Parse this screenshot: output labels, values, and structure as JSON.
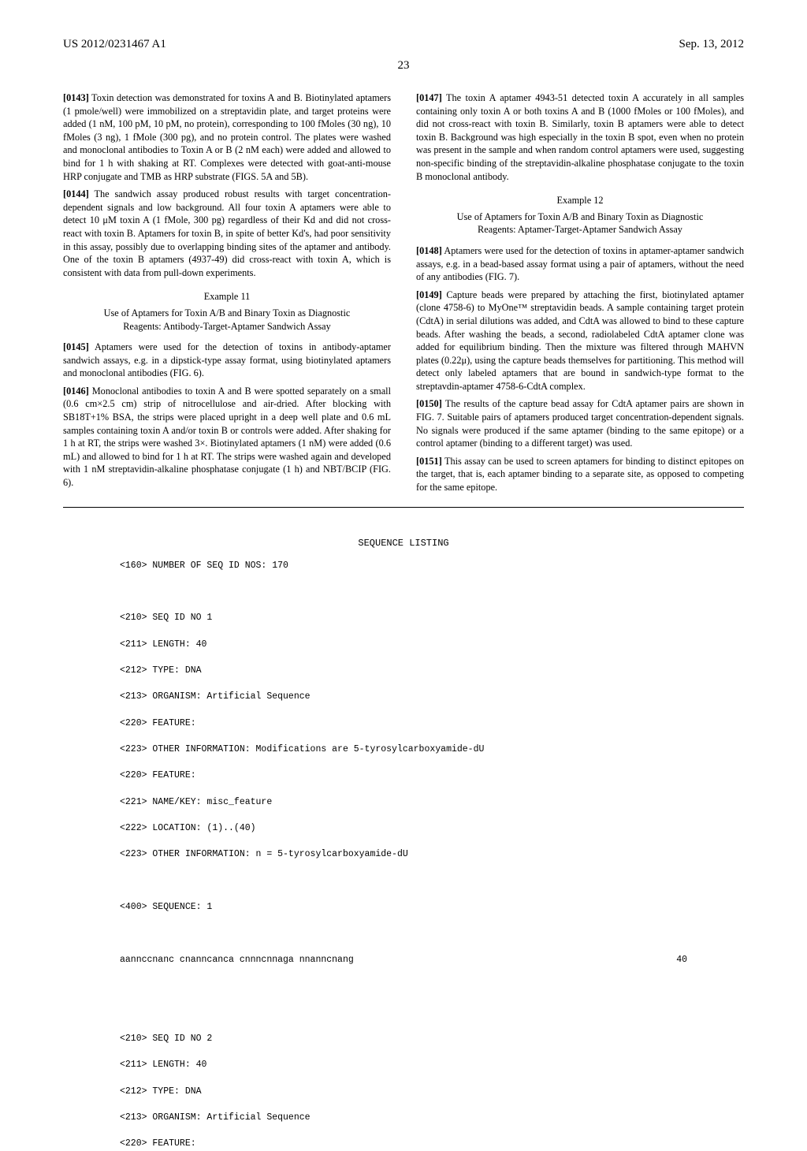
{
  "header": {
    "pub_number": "US 2012/0231467 A1",
    "date": "Sep. 13, 2012",
    "page_number": "23"
  },
  "left_col": {
    "p0143": {
      "num": "[0143]",
      "text": "  Toxin detection was demonstrated for toxins A and B. Biotinylated aptamers (1 pmole/well) were immobilized on a streptavidin plate, and target proteins were added (1 nM, 100 pM, 10 pM, no protein), corresponding to 100 fMoles (30 ng), 10 fMoles (3 ng), 1 fMole (300 pg), and no protein control. The plates were washed and monoclonal antibodies to Toxin A or B (2 nM each) were added and allowed to bind for 1 h with shaking at RT. Complexes were detected with goat-anti-mouse HRP conjugate and TMB as HRP substrate (FIGS. 5A and 5B)."
    },
    "p0144": {
      "num": "[0144]",
      "text": "  The sandwich assay produced robust results with target concentration-dependent signals and low background. All four toxin A aptamers were able to detect 10 μM toxin A (1 fMole, 300 pg) regardless of their Kd and did not cross-react with toxin B. Aptamers for toxin B, in spite of better Kd's, had poor sensitivity in this assay, possibly due to overlapping binding sites of the aptamer and antibody. One of the toxin B aptamers (4937-49) did cross-react with toxin A, which is consistent with data from pull-down experiments."
    },
    "ex11_num": "Example 11",
    "ex11_title": "Use of Aptamers for Toxin A/B and Binary Toxin as Diagnostic Reagents: Antibody-Target-Aptamer Sandwich Assay",
    "p0145": {
      "num": "[0145]",
      "text": "  Aptamers were used for the detection of toxins in antibody-aptamer sandwich assays, e.g. in a dipstick-type assay format, using biotinylated aptamers and monoclonal antibodies (FIG. 6)."
    },
    "p0146": {
      "num": "[0146]",
      "text": "  Monoclonal antibodies to toxin A and B were spotted separately on a small (0.6 cm×2.5 cm) strip of nitrocellulose and air-dried. After blocking with SB18T+1% BSA, the strips were placed upright in a deep well plate and 0.6 mL samples containing toxin A and/or toxin B or controls were added. After shaking for 1 h at RT, the strips were washed 3×. Biotinylated aptamers (1 nM) were added (0.6 mL) and allowed to bind for 1 h at RT. The strips were washed again and developed with 1 nM streptavidin-alkaline phosphatase conjugate (1 h) and NBT/BCIP (FIG. 6)."
    }
  },
  "right_col": {
    "p0147": {
      "num": "[0147]",
      "text": "  The toxin A aptamer 4943-51 detected toxin A accurately in all samples containing only toxin A or both toxins A and B (1000 fMoles or 100 fMoles), and did not cross-react with toxin B. Similarly, toxin B aptamers were able to detect toxin B. Background was high especially in the toxin B spot, even when no protein was present in the sample and when random control aptamers were used, suggesting non-specific binding of the streptavidin-alkaline phosphatase conjugate to the toxin B monoclonal antibody."
    },
    "ex12_num": "Example 12",
    "ex12_title": "Use of Aptamers for Toxin A/B and Binary Toxin as Diagnostic Reagents: Aptamer-Target-Aptamer Sandwich Assay",
    "p0148": {
      "num": "[0148]",
      "text": "  Aptamers were used for the detection of toxins in aptamer-aptamer sandwich assays, e.g. in a bead-based assay format using a pair of aptamers, without the need of any antibodies (FIG. 7)."
    },
    "p0149": {
      "num": "[0149]",
      "text": "  Capture beads were prepared by attaching the first, biotinylated aptamer (clone 4758-6) to MyOne™ streptavidin beads. A sample containing target protein (CdtA) in serial dilutions was added, and CdtA was allowed to bind to these capture beads. After washing the beads, a second, radiolabeled CdtA aptamer clone was added for equilibrium binding. Then the mixture was filtered through MAHVN plates (0.22μ), using the capture beads themselves for partitioning. This method will detect only labeled aptamers that are bound in sandwich-type format to the streptavdin-aptamer 4758-6-CdtA complex."
    },
    "p0150": {
      "num": "[0150]",
      "text": "  The results of the capture bead assay for CdtA aptamer pairs are shown in FIG. 7. Suitable pairs of aptamers produced target concentration-dependent signals. No signals were produced if the same aptamer (binding to the same epitope) or a control aptamer (binding to a different target) was used."
    },
    "p0151": {
      "num": "[0151]",
      "text": "  This assay can be used to screen aptamers for binding to distinct epitopes on the target, that is, each aptamer binding to a separate site, as opposed to competing for the same epitope."
    }
  },
  "seq": {
    "heading": "SEQUENCE LISTING",
    "n160": "<160> NUMBER OF SEQ ID NOS: 170",
    "s1": {
      "l210": "<210> SEQ ID NO 1",
      "l211": "<211> LENGTH: 40",
      "l212": "<212> TYPE: DNA",
      "l213": "<213> ORGANISM: Artificial Sequence",
      "l220a": "<220> FEATURE:",
      "l223a": "<223> OTHER INFORMATION: Modifications are 5-tyrosylcarboxyamide-dU",
      "l220b": "<220> FEATURE:",
      "l221": "<221> NAME/KEY: misc_feature",
      "l222": "<222> LOCATION: (1)..(40)",
      "l223b": "<223> OTHER INFORMATION: n = 5-tyrosylcarboxyamide-dU",
      "l400": "<400> SEQUENCE: 1",
      "seqline": "aannccnanc cnanncanca cnnncnnaga nnanncnang",
      "seqlen": "40"
    },
    "s2": {
      "l210": "<210> SEQ ID NO 2",
      "l211": "<211> LENGTH: 40",
      "l212": "<212> TYPE: DNA",
      "l213": "<213> ORGANISM: Artificial Sequence",
      "l220": "<220> FEATURE:"
    }
  }
}
